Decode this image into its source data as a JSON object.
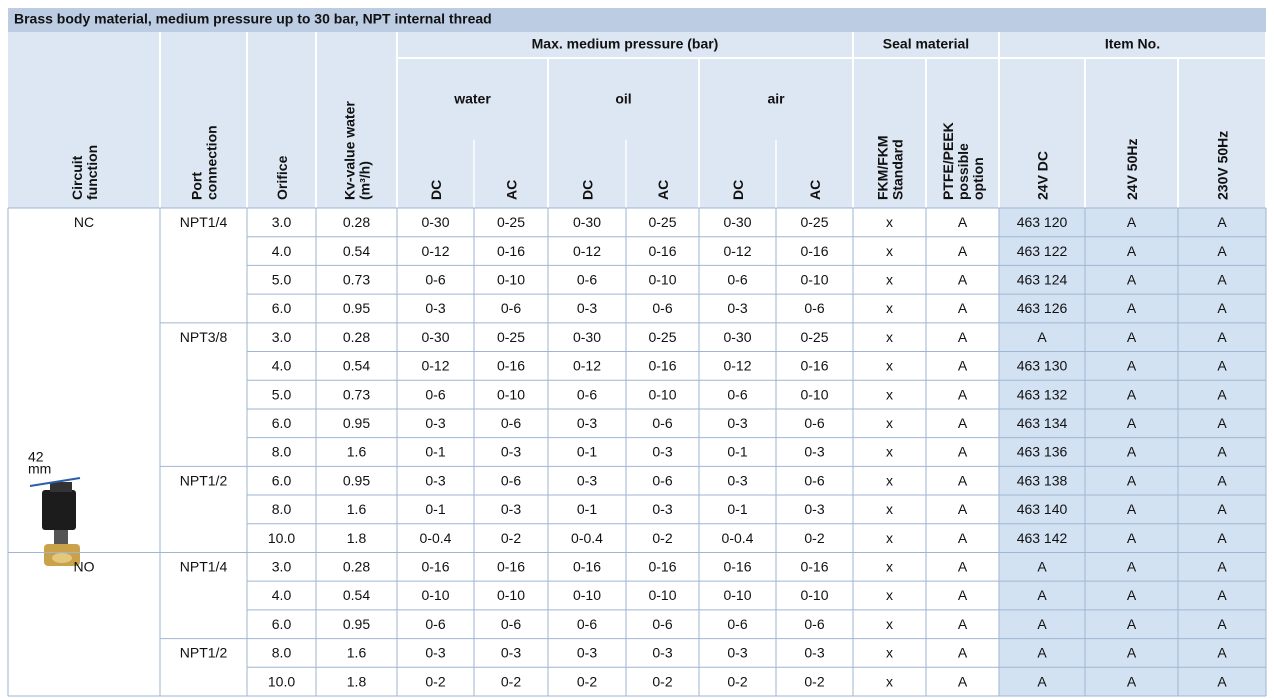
{
  "title": "Brass body material, medium pressure up to 30 bar, NPT internal thread",
  "header": {
    "groups": [
      {
        "label": "Max. medium pressure (bar)",
        "from": 4,
        "to": 9
      },
      {
        "label": "Seal material",
        "from": 10,
        "to": 11
      },
      {
        "label": "Item No.",
        "from": 12,
        "to": 14
      }
    ],
    "subgroups": [
      {
        "label": "water",
        "from": 4,
        "to": 5
      },
      {
        "label": "oil",
        "from": 6,
        "to": 7
      },
      {
        "label": "air",
        "from": 8,
        "to": 9
      }
    ],
    "columns": [
      [
        "Circuit",
        "function"
      ],
      [
        "Port",
        "connection"
      ],
      [
        "Orifice"
      ],
      [
        "Kv-value water",
        "(m³/h)"
      ],
      [
        "DC"
      ],
      [
        "AC"
      ],
      [
        "DC"
      ],
      [
        "AC"
      ],
      [
        "DC"
      ],
      [
        "AC"
      ],
      [
        "FKM/FKM",
        "Standard"
      ],
      [
        "PTFE/PEEK",
        "possible",
        "option"
      ],
      [
        "24V DC"
      ],
      [
        "24V 50Hz"
      ],
      [
        "230V 50Hz"
      ]
    ]
  },
  "image_label": [
    "42",
    "mm"
  ],
  "table": {
    "rows": [
      [
        "NC",
        "NPT1/4",
        "3.0",
        "0.28",
        "0-30",
        "0-25",
        "0-30",
        "0-25",
        "0-30",
        "0-25",
        "x",
        "A",
        "463 120",
        "A",
        "A"
      ],
      [
        null,
        null,
        "4.0",
        "0.54",
        "0-12",
        "0-16",
        "0-12",
        "0-16",
        "0-12",
        "0-16",
        "x",
        "A",
        "463 122",
        "A",
        "A"
      ],
      [
        null,
        null,
        "5.0",
        "0.73",
        "0-6",
        "0-10",
        "0-6",
        "0-10",
        "0-6",
        "0-10",
        "x",
        "A",
        "463 124",
        "A",
        "A"
      ],
      [
        null,
        null,
        "6.0",
        "0.95",
        "0-3",
        "0-6",
        "0-3",
        "0-6",
        "0-3",
        "0-6",
        "x",
        "A",
        "463 126",
        "A",
        "A"
      ],
      [
        null,
        "NPT3/8",
        "3.0",
        "0.28",
        "0-30",
        "0-25",
        "0-30",
        "0-25",
        "0-30",
        "0-25",
        "x",
        "A",
        "A",
        "A",
        "A"
      ],
      [
        null,
        null,
        "4.0",
        "0.54",
        "0-12",
        "0-16",
        "0-12",
        "0-16",
        "0-12",
        "0-16",
        "x",
        "A",
        "463 130",
        "A",
        "A"
      ],
      [
        null,
        null,
        "5.0",
        "0.73",
        "0-6",
        "0-10",
        "0-6",
        "0-10",
        "0-6",
        "0-10",
        "x",
        "A",
        "463 132",
        "A",
        "A"
      ],
      [
        null,
        null,
        "6.0",
        "0.95",
        "0-3",
        "0-6",
        "0-3",
        "0-6",
        "0-3",
        "0-6",
        "x",
        "A",
        "463 134",
        "A",
        "A"
      ],
      [
        null,
        null,
        "8.0",
        "1.6",
        "0-1",
        "0-3",
        "0-1",
        "0-3",
        "0-1",
        "0-3",
        "x",
        "A",
        "463 136",
        "A",
        "A"
      ],
      [
        null,
        "NPT1/2",
        "6.0",
        "0.95",
        "0-3",
        "0-6",
        "0-3",
        "0-6",
        "0-3",
        "0-6",
        "x",
        "A",
        "463 138",
        "A",
        "A"
      ],
      [
        null,
        null,
        "8.0",
        "1.6",
        "0-1",
        "0-3",
        "0-1",
        "0-3",
        "0-1",
        "0-3",
        "x",
        "A",
        "463 140",
        "A",
        "A"
      ],
      [
        null,
        null,
        "10.0",
        "1.8",
        "0-0.4",
        "0-2",
        "0-0.4",
        "0-2",
        "0-0.4",
        "0-2",
        "x",
        "A",
        "463 142",
        "A",
        "A"
      ],
      [
        "NO",
        "NPT1/4",
        "3.0",
        "0.28",
        "0-16",
        "0-16",
        "0-16",
        "0-16",
        "0-16",
        "0-16",
        "x",
        "A",
        "A",
        "A",
        "A"
      ],
      [
        null,
        null,
        "4.0",
        "0.54",
        "0-10",
        "0-10",
        "0-10",
        "0-10",
        "0-10",
        "0-10",
        "x",
        "A",
        "A",
        "A",
        "A"
      ],
      [
        null,
        null,
        "6.0",
        "0.95",
        "0-6",
        "0-6",
        "0-6",
        "0-6",
        "0-6",
        "0-6",
        "x",
        "A",
        "A",
        "A",
        "A"
      ],
      [
        null,
        "NPT1/2",
        "8.0",
        "1.6",
        "0-3",
        "0-3",
        "0-3",
        "0-3",
        "0-3",
        "0-3",
        "x",
        "A",
        "A",
        "A",
        "A"
      ],
      [
        null,
        null,
        "10.0",
        "1.8",
        "0-2",
        "0-2",
        "0-2",
        "0-2",
        "0-2",
        "0-2",
        "x",
        "A",
        "A",
        "A",
        "A"
      ]
    ]
  }
}
